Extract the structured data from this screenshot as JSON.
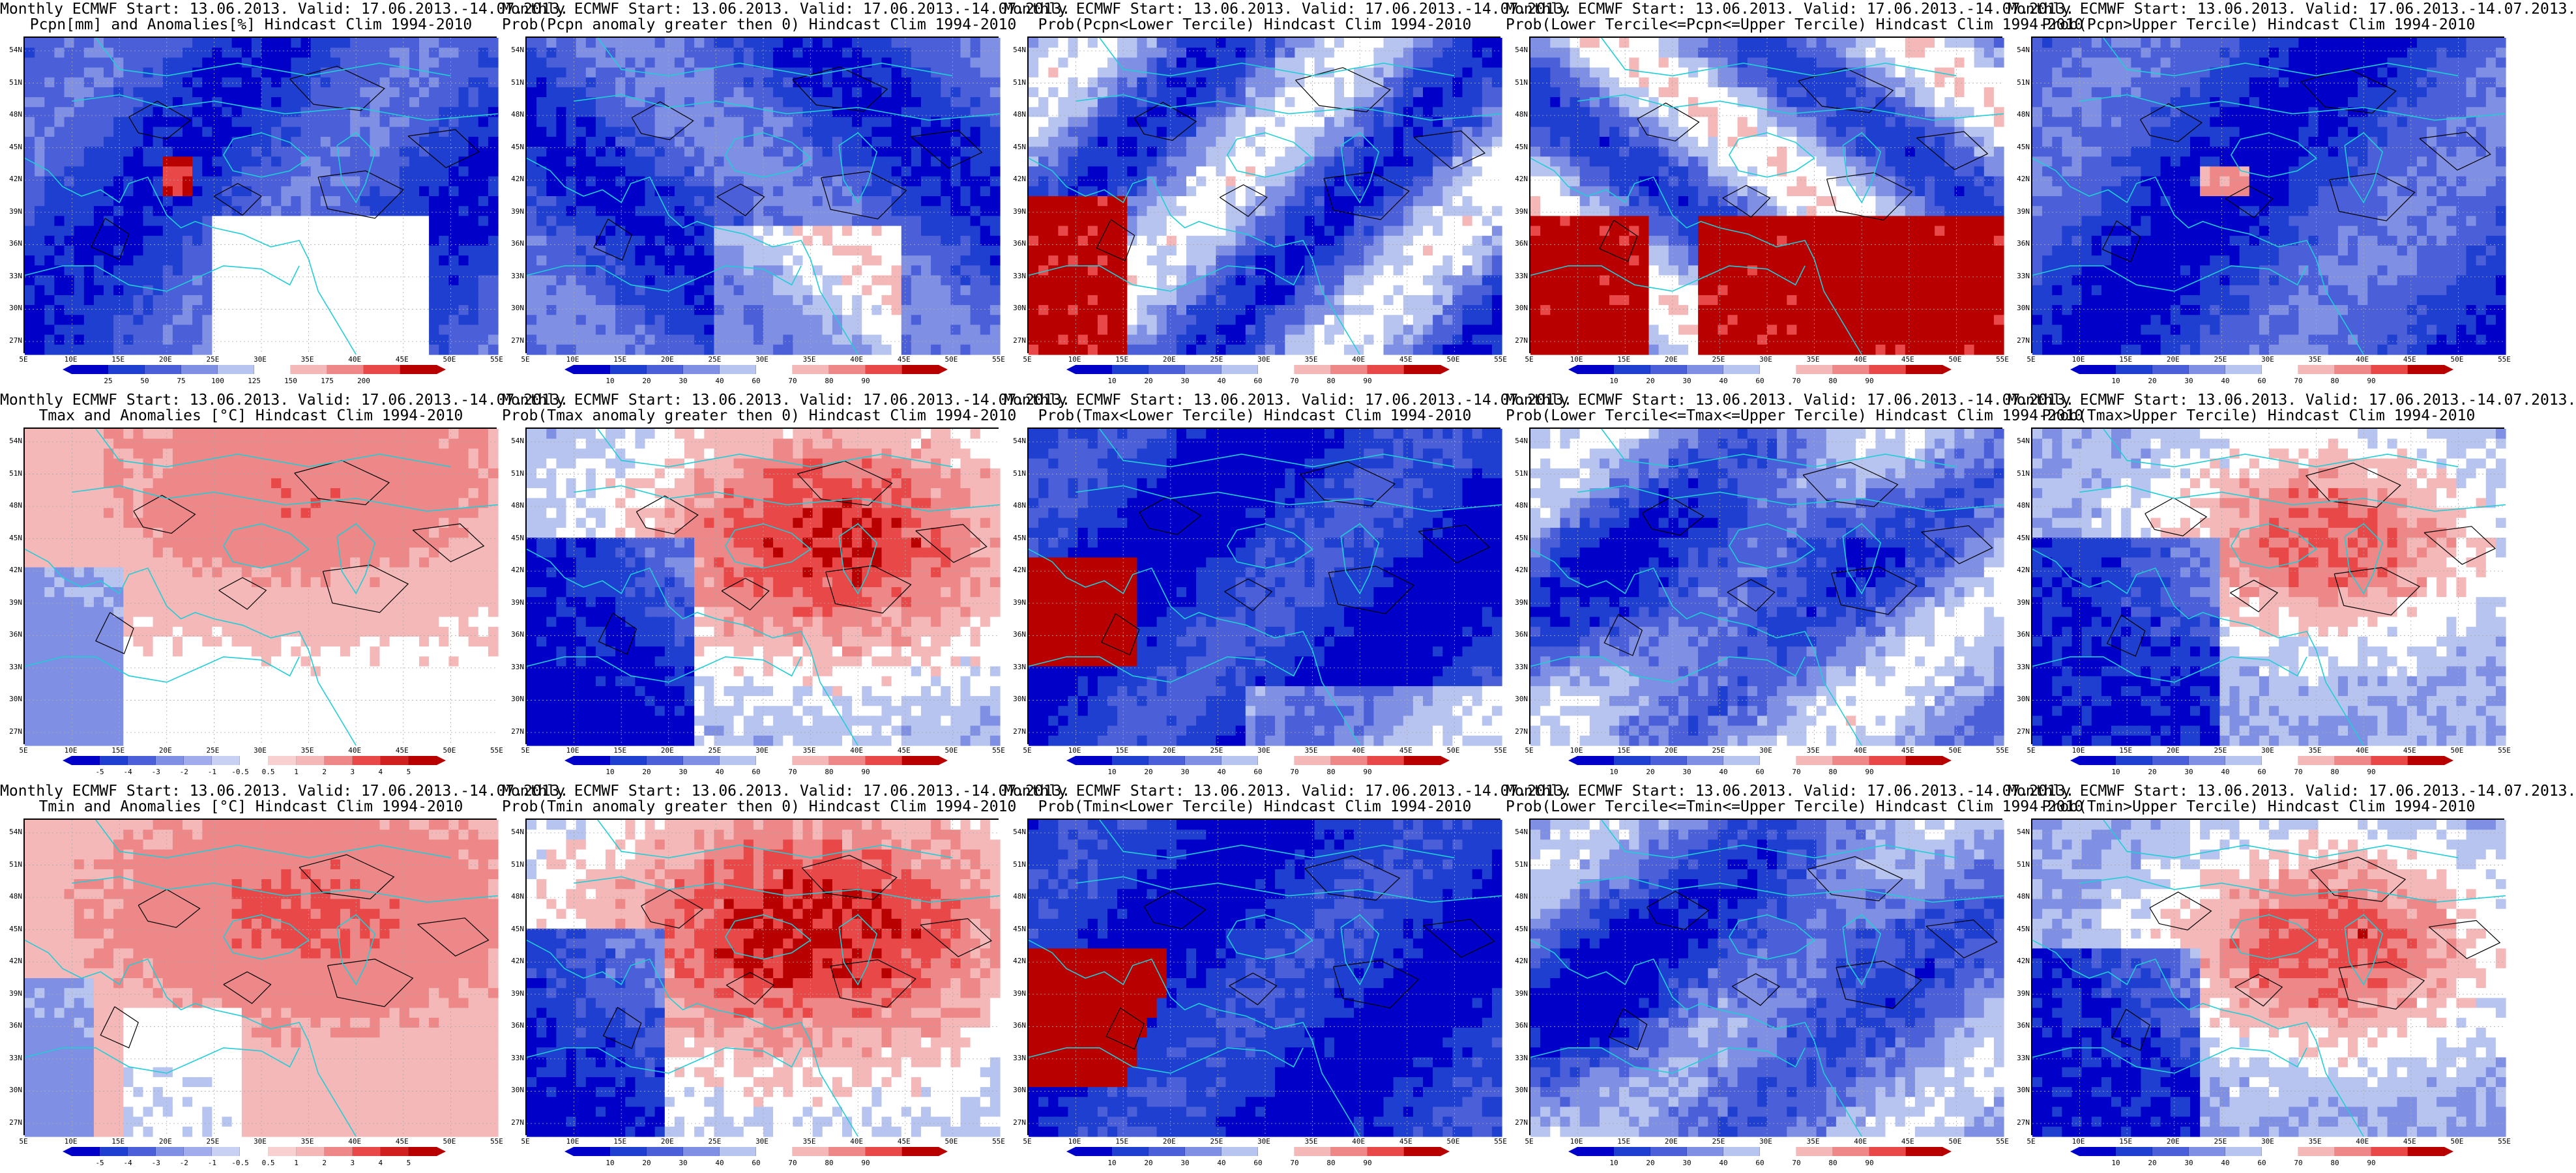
{
  "colors": {
    "dark_blue": "#0000c8",
    "mid_blue": "#4a5fd8",
    "light_blue": "#b8c4f0",
    "white": "#ffffff",
    "light_red": "#f4b8b8",
    "mid_red": "#e84848",
    "dark_red": "#b80000",
    "coast": "#21cdd6",
    "contour": "#000000"
  },
  "axes": {
    "lat_labels": [
      "54N",
      "51N",
      "48N",
      "45N",
      "42N",
      "39N",
      "36N",
      "33N",
      "30N",
      "27N"
    ],
    "lon_labels": [
      "5E",
      "10E",
      "15E",
      "20E",
      "25E",
      "30E",
      "35E",
      "40E",
      "45E",
      "50E",
      "55E"
    ]
  },
  "colorbars": {
    "precip": {
      "ticks": [
        "25",
        "50",
        "75",
        "100",
        "125",
        "150",
        "175",
        "200"
      ],
      "palette": [
        "#0000c8",
        "#1f3fd0",
        "#4a5fd8",
        "#7f8fe4",
        "#b8c4f0",
        "#ffffff",
        "#f4b8b8",
        "#ee8888",
        "#e84848",
        "#b80000"
      ]
    },
    "prob": {
      "ticks": [
        "10",
        "20",
        "30",
        "40",
        "60",
        "70",
        "80",
        "90"
      ],
      "palette": [
        "#0000c8",
        "#1f3fd0",
        "#4a5fd8",
        "#7f8fe4",
        "#b8c4f0",
        "#ffffff",
        "#f4b8b8",
        "#ee8888",
        "#e84848",
        "#b80000"
      ]
    },
    "anom": {
      "ticks": [
        "-5",
        "-4",
        "-3",
        "-2",
        "-1",
        "-0.5",
        "0.5",
        "1",
        "2",
        "3",
        "4",
        "5"
      ],
      "palette": [
        "#0000c8",
        "#1f3fd0",
        "#4a5fd8",
        "#7f8fe4",
        "#a0acec",
        "#c8d0f4",
        "#ffffff",
        "#f8d0d0",
        "#f4b8b8",
        "#ee8888",
        "#e84848",
        "#d02020",
        "#b80000"
      ]
    }
  },
  "panels": [
    {
      "title1": "Monthly ECMWF Start: 13.06.2013. Valid: 17.06.2013.-14.07.2013.",
      "title2": "Pcpn[mm] and Anomalies[%] Hindcast Clim 1994-2010",
      "colorbar": "precip",
      "field": "pcpn_anom"
    },
    {
      "title1": "Monthly ECMWF Start: 13.06.2013. Valid: 17.06.2013.-14.07.2013.",
      "title2": "Prob(Pcpn anomaly greater then 0) Hindcast Clim 1994-2010",
      "colorbar": "prob",
      "field": "pcpn_pos"
    },
    {
      "title1": "Monthly ECMWF Start: 13.06.2013. Valid: 17.06.2013.-14.07.2013.",
      "title2": "Prob(Pcpn<Lower Tercile) Hindcast Clim 1994-2010",
      "colorbar": "prob",
      "field": "pcpn_low"
    },
    {
      "title1": "Monthly ECMWF Start: 13.06.2013. Valid: 17.06.2013.-14.07.2013.",
      "title2": "Prob(Lower Tercile<=Pcpn<=Upper Tercile) Hindcast Clim 1994-2010",
      "colorbar": "prob",
      "field": "pcpn_mid"
    },
    {
      "title1": "Monthly ECMWF Start: 13.06.2013. Valid: 17.06.2013.-14.07.2013.",
      "title2": "Prob(Pcpn>Upper Tercile) Hindcast Clim 1994-2010",
      "colorbar": "prob",
      "field": "pcpn_up"
    },
    {
      "title1": "Monthly ECMWF Start: 13.06.2013. Valid: 17.06.2013.-14.07.2013.",
      "title2": "Tmax and Anomalies [°C] Hindcast Clim 1994-2010",
      "colorbar": "anom",
      "field": "tmax_anom"
    },
    {
      "title1": "Monthly ECMWF Start: 13.06.2013. Valid: 17.06.2013.-14.07.2013.",
      "title2": "Prob(Tmax anomaly greater then 0) Hindcast Clim 1994-2010",
      "colorbar": "prob",
      "field": "tmax_pos"
    },
    {
      "title1": "Monthly ECMWF Start: 13.06.2013. Valid: 17.06.2013.-14.07.2013.",
      "title2": "Prob(Tmax<Lower Tercile) Hindcast Clim 1994-2010",
      "colorbar": "prob",
      "field": "tmax_low"
    },
    {
      "title1": "Monthly ECMWF Start: 13.06.2013. Valid: 17.06.2013.-14.07.2013.",
      "title2": "Prob(Lower Tercile<=Tmax<=Upper Tercile) Hindcast Clim 1994-2010",
      "colorbar": "prob",
      "field": "tmax_mid"
    },
    {
      "title1": "Monthly ECMWF Start: 13.06.2013. Valid: 17.06.2013.-14.07.2013.",
      "title2": "Prob(Tmax>Upper Tercile) Hindcast Clim 1994-2010",
      "colorbar": "prob",
      "field": "tmax_up"
    },
    {
      "title1": "Monthly ECMWF Start: 13.06.2013. Valid: 17.06.2013.-14.07.2013.",
      "title2": "Tmin and Anomalies [°C] Hindcast Clim 1994-2010",
      "colorbar": "anom",
      "field": "tmin_anom"
    },
    {
      "title1": "Monthly ECMWF Start: 13.06.2013. Valid: 17.06.2013.-14.07.2013.",
      "title2": "Prob(Tmin anomaly greater then 0) Hindcast Clim 1994-2010",
      "colorbar": "prob",
      "field": "tmin_pos"
    },
    {
      "title1": "Monthly ECMWF Start: 13.06.2013. Valid: 17.06.2013.-14.07.2013.",
      "title2": "Prob(Tmin<Lower Tercile) Hindcast Clim 1994-2010",
      "colorbar": "prob",
      "field": "tmin_low"
    },
    {
      "title1": "Monthly ECMWF Start: 13.06.2013. Valid: 17.06.2013.-14.07.2013.",
      "title2": "Prob(Lower Tercile<=Tmin<=Upper Tercile) Hindcast Clim 1994-2010",
      "colorbar": "prob",
      "field": "tmin_mid"
    },
    {
      "title1": "Monthly ECMWF Start: 13.06.2013. Valid: 17.06.2013.-14.07.2013.",
      "title2": "Prob(Tmin>Upper Tercile) Hindcast Clim 1994-2010",
      "colorbar": "prob",
      "field": "tmin_up"
    }
  ]
}
